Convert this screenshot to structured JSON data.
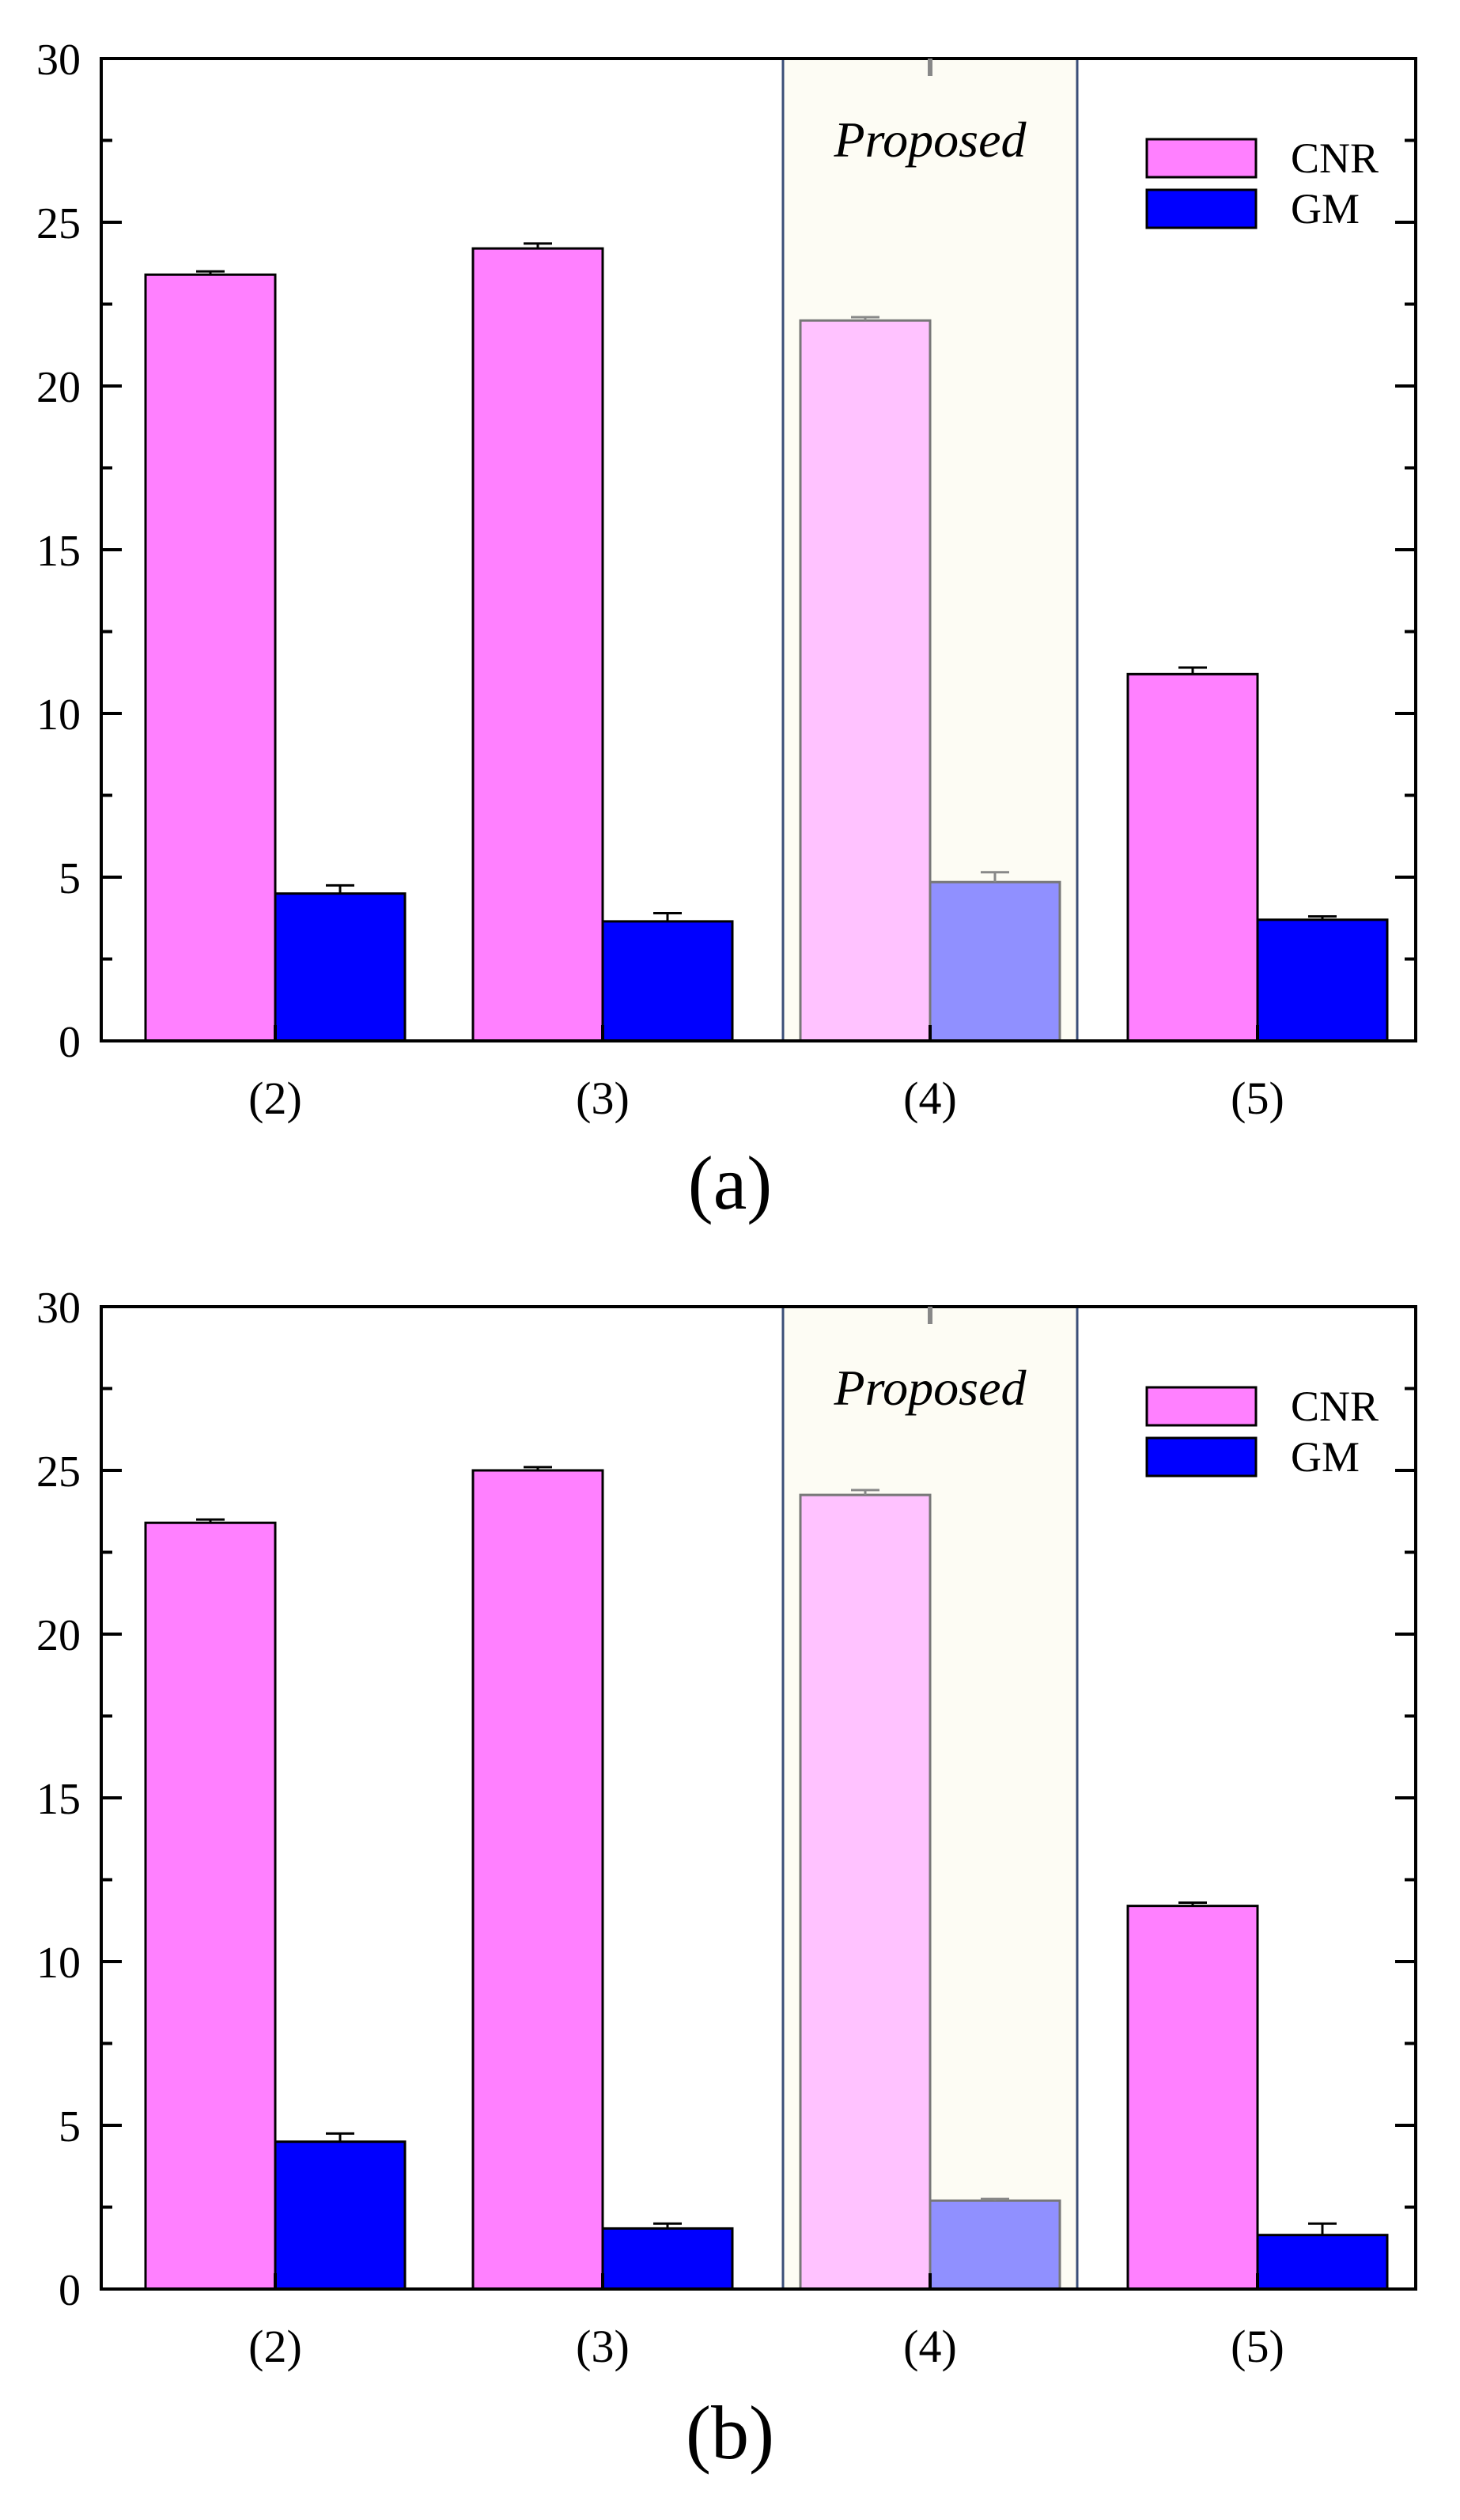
{
  "colors": {
    "cnr": "#FF80FF",
    "gm": "#0000FF",
    "cnr_highlight": "#FFC2FF",
    "gm_highlight": "#9090FF",
    "highlight_background": "#FDFCF4",
    "highlight_border": "#3A4E78"
  },
  "chart_data": [
    {
      "type": "bar",
      "panel_label": "(a)",
      "categories": [
        "(2)",
        "(3)",
        "(4)",
        "(5)"
      ],
      "series": [
        {
          "name": "CNR",
          "values": [
            23.4,
            24.2,
            22.0,
            11.2
          ],
          "errors": [
            0.1,
            0.15,
            0.1,
            0.2
          ]
        },
        {
          "name": "GM",
          "values": [
            4.5,
            3.65,
            4.85,
            3.7
          ],
          "errors": [
            0.25,
            0.25,
            0.3,
            0.1
          ]
        }
      ],
      "highlight": {
        "category": "(4)",
        "label": "Proposed"
      },
      "ylim": [
        0,
        30
      ],
      "yticks": [
        "0",
        "5",
        "10",
        "15",
        "20",
        "25",
        "30"
      ],
      "legend": {
        "position": "top-right",
        "entries": [
          "CNR",
          "GM"
        ]
      },
      "title": "",
      "xlabel": "",
      "ylabel": ""
    },
    {
      "type": "bar",
      "panel_label": "(b)",
      "categories": [
        "(2)",
        "(3)",
        "(4)",
        "(5)"
      ],
      "series": [
        {
          "name": "CNR",
          "values": [
            23.4,
            25.0,
            24.25,
            11.7
          ],
          "errors": [
            0.1,
            0.1,
            0.15,
            0.1
          ]
        },
        {
          "name": "GM",
          "values": [
            4.5,
            1.85,
            2.7,
            1.65
          ],
          "errors": [
            0.25,
            0.15,
            0.05,
            0.35
          ]
        }
      ],
      "highlight": {
        "category": "(4)",
        "label": "Proposed"
      },
      "ylim": [
        0,
        30
      ],
      "yticks": [
        "0",
        "5",
        "10",
        "15",
        "20",
        "25",
        "30"
      ],
      "legend": {
        "position": "top-right",
        "entries": [
          "CNR",
          "GM"
        ]
      },
      "title": "",
      "xlabel": "",
      "ylabel": ""
    }
  ]
}
